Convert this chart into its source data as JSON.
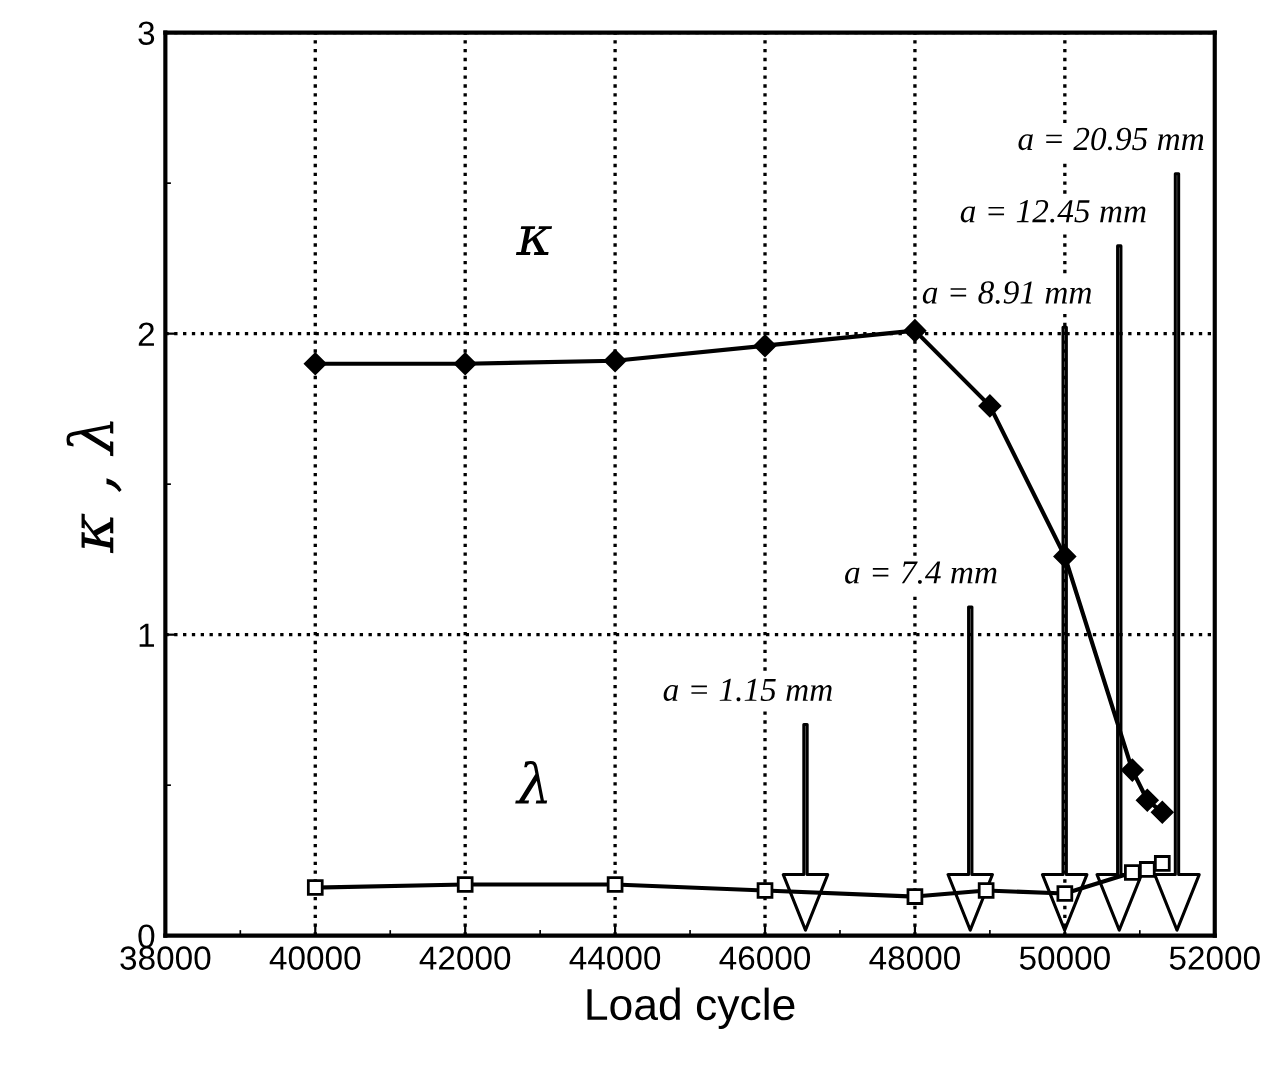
{
  "chart_data": {
    "type": "line",
    "xlabel": "Load cycle",
    "ylabel": "κ , λ",
    "xlim": [
      38000,
      52000
    ],
    "xticks": [
      38000,
      40000,
      42000,
      44000,
      46000,
      48000,
      50000,
      52000
    ],
    "ylim": [
      0,
      3
    ],
    "yticks": [
      0,
      1,
      2,
      3
    ],
    "grid": true,
    "legend": false,
    "line_style": "solid",
    "series": [
      {
        "name": "κ",
        "color": "#000000",
        "marker": "diamond",
        "x": [
          40000,
          42000,
          44000,
          46000,
          48000,
          49000,
          50000,
          50900,
          51100,
          51300
        ],
        "values": [
          1.9,
          1.9,
          1.91,
          1.96,
          2.01,
          1.76,
          1.26,
          0.55,
          0.45,
          0.41
        ]
      },
      {
        "name": "λ",
        "color": "#000000",
        "marker": "square",
        "x": [
          40000,
          42000,
          44000,
          46000,
          48000,
          48950,
          50000,
          50900,
          51100,
          51300
        ],
        "values": [
          0.16,
          0.17,
          0.17,
          0.15,
          0.13,
          0.15,
          0.14,
          0.21,
          0.22,
          0.24
        ]
      }
    ],
    "annotations": [
      "a = 1.15 mm",
      "a = 7.4 mm",
      "a = 8.91 mm",
      "a = 12.45 mm",
      "a = 20.95 mm"
    ]
  }
}
